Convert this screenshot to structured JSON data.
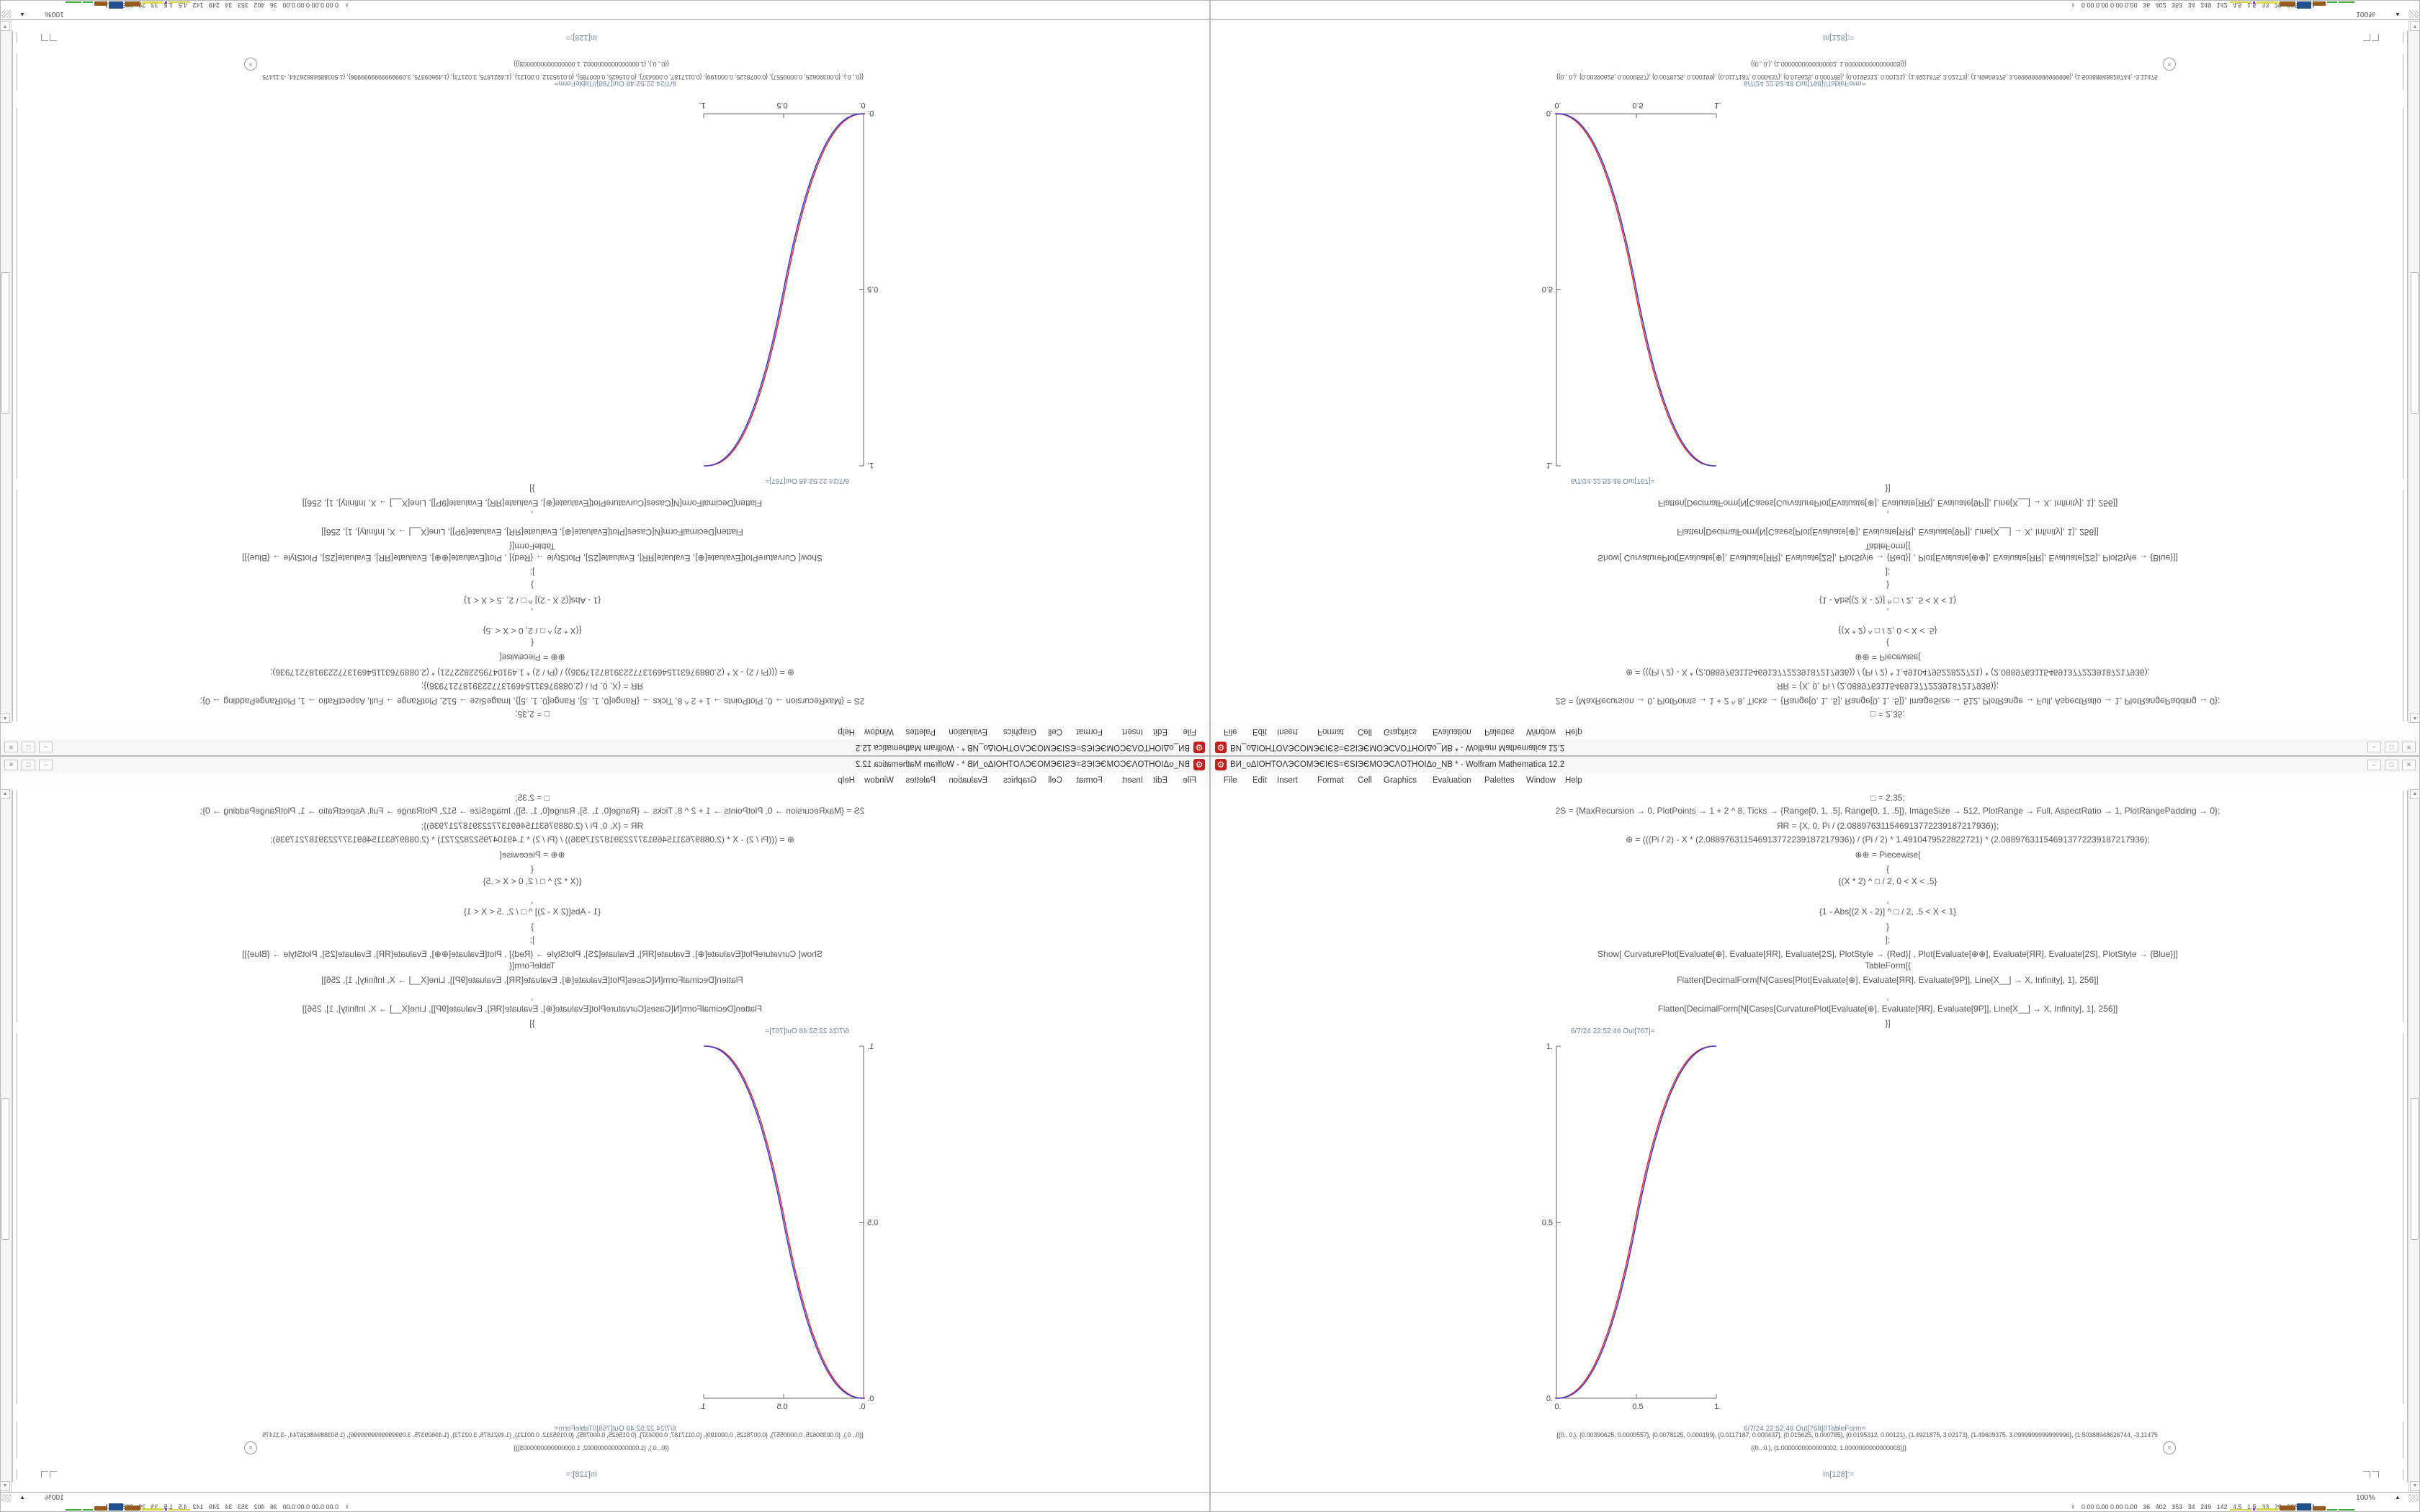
{
  "window": {
    "title": "ВИ_оΔIOHTOΛЭCOMЭЄIЄS=ЄSIЭЄMOЭCΛOTHOIΔо_NB * - Wolfram Mathematica 12.2",
    "menu": [
      "File",
      "Edit",
      "Insert",
      "Format",
      "Cell",
      "Graphics",
      "Evaluation",
      "Palettes",
      "Window",
      "Help"
    ],
    "controls": [
      "–",
      "□",
      "✕"
    ],
    "code_lines": [
      "□ = 2.35;",
      "2S = {MaxRecursion → 0, PlotPoints → 1 + 2 ^ 8, Ticks → {Range[0, 1, .5], Range[0, 1, .5]}, ImageSize → 512, PlotRange → Full, AspectRatio → 1, PlotRangePadding → 0};",
      "ЯR = {X, 0, Pi / (2.088976311546913772239187217936)};",
      "⊕ = (((Pi / 2) - X * (2.088976311546913772239187217936)) / (Pi / 2) * 1.4910479522822721) * (2.088976311546913772239187217936);",
      "⊕⊕ = Piecewise[",
      "{",
      "{(X * 2) ^ □ / 2, 0 < X < .5}",
      ",",
      "{1 - Abs[(2 X - 2)] ^ □ / 2, .5 < X < 1}",
      "}",
      "];",
      "Show[  CurvaturePlot[Evaluate[⊕], Evaluate[ЯR], Evaluate[2S], PlotStyle → {Red}]  ,  Plot[Evaluate[⊕⊕], Evaluate[ЯR], Evaluate[2S], PlotStyle → {Blue}]]",
      "TableForm[{",
      "Flatten[DecimalForm[N[Cases[Plot[Evaluate[⊕], Evaluate[ЯR], Evaluate[9P]], Line[X__] → X, Infinity], 1], 256]]",
      ",",
      "Flatten[DecimalForm[N[Cases[CurvaturePlot[Evaluate[⊕], Evaluate[ЯR], Evaluate[9P]], Line[X__] → X, Infinity], 1], 256]]",
      "}]"
    ],
    "out1_label": "6/7/24 22:52:48 Out[767]=",
    "out2_label": "6/7/24 22:52:48 Out[768]//TableForm=",
    "table_row1": "{{0., 0.}, {0.00390625, 0.0000557}, {0.0078125, 0.000199}, {0.0117187, 0.000437}, {0.015625, 0.000785}, {0.0195312, 0.00121}, {1.4921875, 3.02173}, {1.49609375, 3.0999999999999996}, {1.50388948626744, -3.114757622170496}}}",
    "table_row2": "{{0., 0.}, {1.0000000000000002, 1.0000000000000003}}}",
    "in_prompt": "In[128]:=",
    "zoom_level": "100%"
  },
  "strip": {
    "icon": "☓",
    "readout": "0.00 0.00 0.00 0.00   36   402   353   34   249   142   4.5   1.5   33   29   29553811",
    "graph_colors": [
      "#d9d943",
      "#9933cc",
      "#d9d943",
      "#96591e",
      "#23518f",
      "#96591e",
      "#3fae3f",
      "#3fae3f"
    ]
  },
  "accent_colors": {
    "app_icon_red": "#c41f1f",
    "curve_red": "#e02424",
    "curve_blue": "#3f3fd0"
  },
  "chart_data": {
    "type": "line",
    "title": "",
    "xlabel": "",
    "ylabel": "",
    "x_range": [
      0,
      1
    ],
    "y_range": [
      0,
      1
    ],
    "x_ticks": [
      "0.",
      "0.5",
      "1."
    ],
    "y_ticks": [
      "0.",
      "0.5",
      "1."
    ],
    "grid": false,
    "legend": "none",
    "exponent": 2.35,
    "series": [
      {
        "name": "CurvaturePlot (PlotStyle Red)",
        "color": "#e02424",
        "formula": "y=(2x)^2.35/2 for 0<x<=0.5 ; y=1-(2-2x)^2.35/2 for 0.5<x<1"
      },
      {
        "name": "Plot (PlotStyle Blue)",
        "color": "#3f3fd0",
        "formula": "y=(2x)^2.35/2 for 0<x<=0.5 ; y=1-(2-2x)^2.35/2 for 0.5<x<1"
      }
    ],
    "sample_points": [
      [
        0,
        0
      ],
      [
        0.1,
        0.0114
      ],
      [
        0.2,
        0.058
      ],
      [
        0.3,
        0.15
      ],
      [
        0.4,
        0.296
      ],
      [
        0.5,
        0.5
      ],
      [
        0.6,
        0.704
      ],
      [
        0.7,
        0.85
      ],
      [
        0.8,
        0.942
      ],
      [
        0.9,
        0.9886
      ],
      [
        1,
        1
      ]
    ]
  }
}
